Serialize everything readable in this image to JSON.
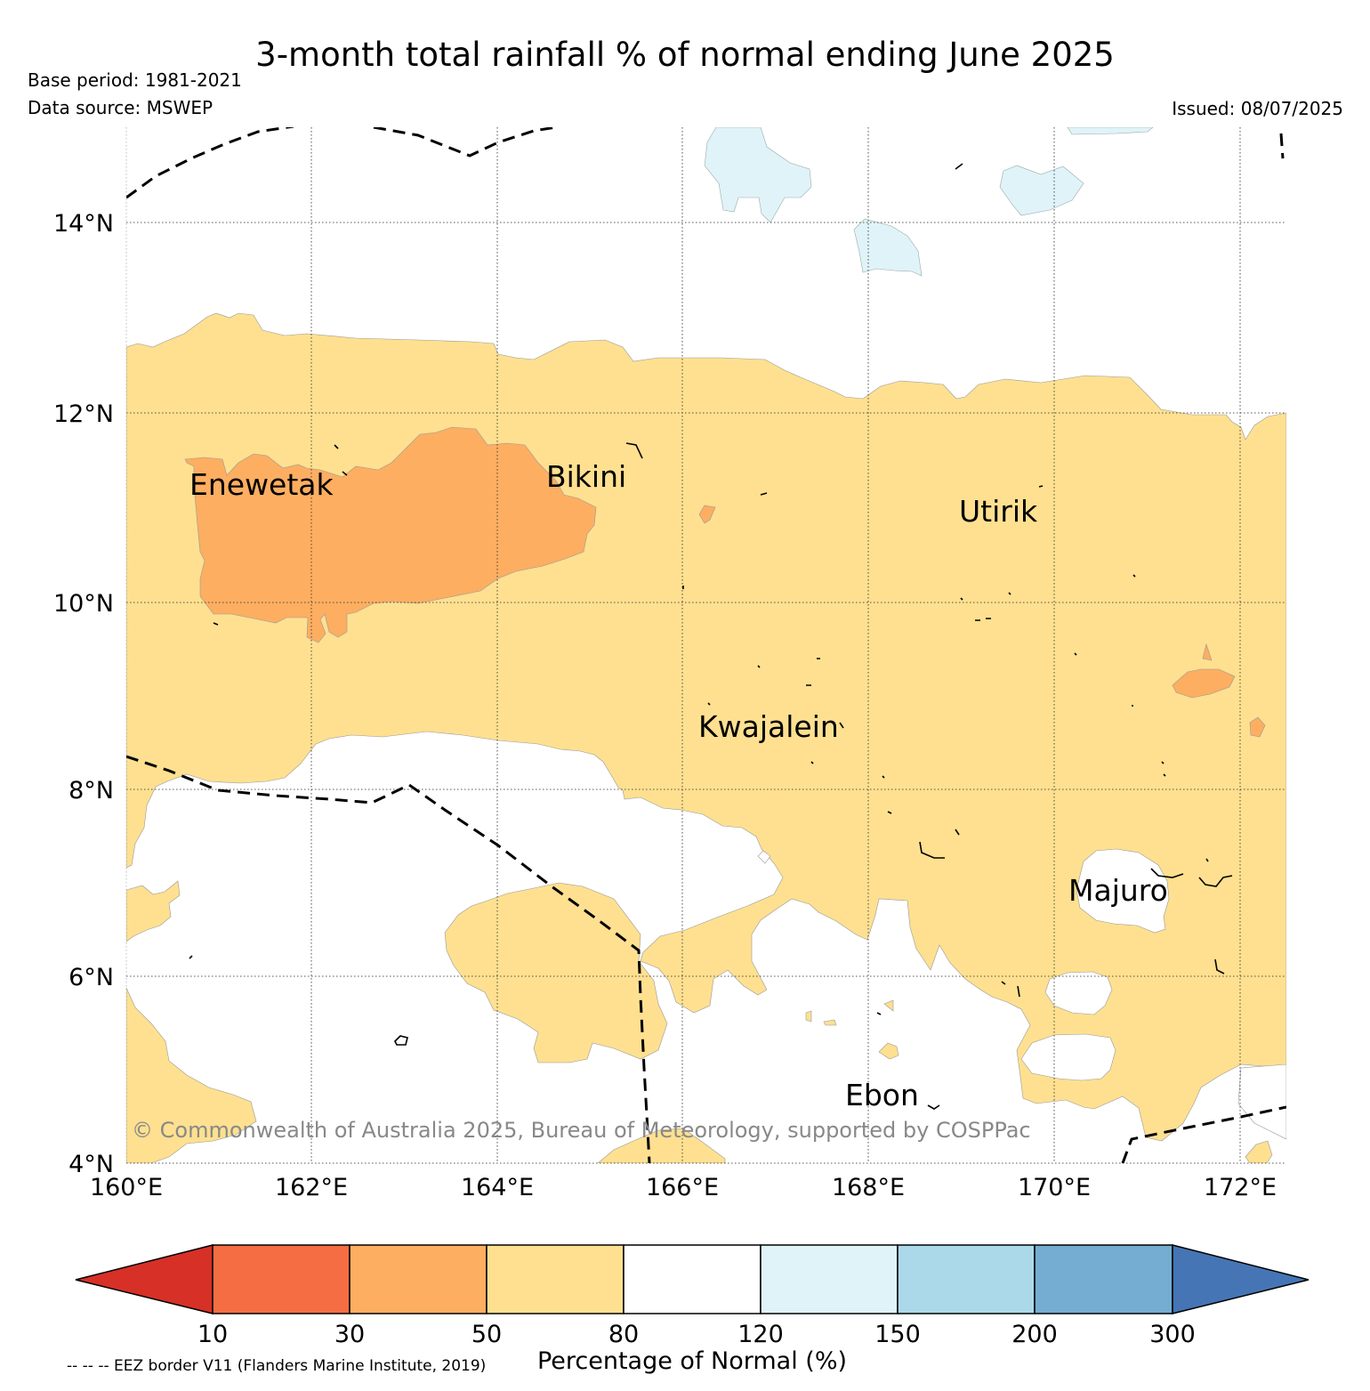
{
  "title": "3-month total rainfall % of normal ending June 2025",
  "base_period": "Base period: 1981-2021",
  "data_source": "Data source: MSWEP",
  "issued": "Issued: 08/07/2025",
  "map": {
    "lat_labels": [
      "4°N",
      "6°N",
      "8°N",
      "10°N",
      "12°N",
      "14°N"
    ],
    "lon_labels": [
      "160°E",
      "162°E",
      "164°E",
      "166°E",
      "168°E",
      "170°E",
      "172°E"
    ],
    "places": [
      "Enewetak",
      "Bikini",
      "Utirik",
      "Kwajalein",
      "Majuro",
      "Ebon"
    ],
    "copyright": "© Commonwealth of Australia 2025, Bureau of Meteorology, supported by COSPPac",
    "colors": {
      "below_10": "#d73027",
      "10_30": "#f46d43",
      "30_50": "#fdae61",
      "50_80": "#fee090",
      "80_120": "#ffffff",
      "120_150": "#e0f3f8",
      "150_200": "#abd9e9",
      "200_300": "#74add1",
      "above_300": "#4575b4"
    }
  },
  "colorbar": {
    "ticks": [
      "10",
      "30",
      "50",
      "80",
      "120",
      "150",
      "200",
      "300"
    ],
    "label": "Percentage of Normal (%)"
  },
  "eez_note": "-- -- -- EEZ border V11 (Flanders Marine Institute, 2019)"
}
